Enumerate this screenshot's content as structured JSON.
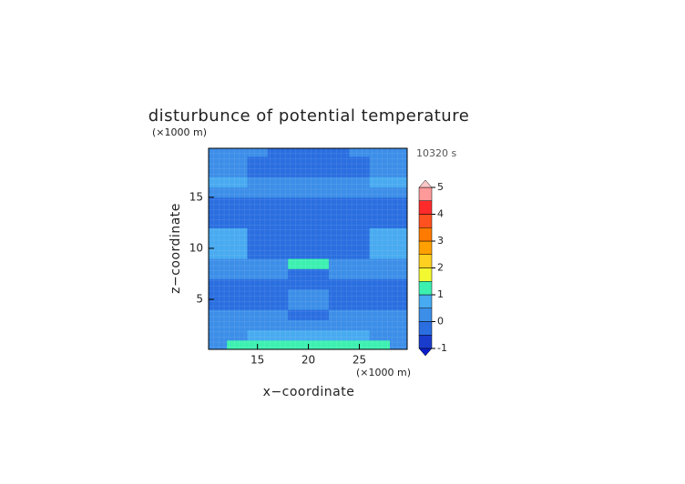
{
  "chart_data": {
    "type": "contour",
    "title": "disturbunce of potential temperature",
    "y_unit_label": "(×1000 m)",
    "x_unit_label": "(×1000 m)",
    "time_label": "10320 s",
    "xlabel": "x−coordinate",
    "ylabel": "z−coordinate",
    "xlim": [
      10.2,
      29.7
    ],
    "ylim": [
      0.1,
      19.8
    ],
    "xticks": [
      15,
      20,
      25
    ],
    "yticks": [
      5,
      10,
      15
    ],
    "x": [
      11,
      13,
      15,
      17,
      19,
      21,
      23,
      25,
      27,
      29
    ],
    "y": [
      0.5,
      1.5,
      2.5,
      3.5,
      4.5,
      5.5,
      6.5,
      7.5,
      8.5,
      9.5,
      10.5,
      11.5,
      12.5,
      13.5,
      14.5,
      15.5,
      16.5,
      17.5,
      18.5,
      19.5
    ],
    "z": [
      [
        0.3,
        1.2,
        1.2,
        1.2,
        1.2,
        1.2,
        1.2,
        1.2,
        1.2,
        0.3
      ],
      [
        0.3,
        0.3,
        0.6,
        0.6,
        0.6,
        0.6,
        0.6,
        0.6,
        0.3,
        0.3
      ],
      [
        0.3,
        0.3,
        0.3,
        0.3,
        0.3,
        0.3,
        0.3,
        0.3,
        0.3,
        0.3
      ],
      [
        0.3,
        0.3,
        0.3,
        0.3,
        -0.2,
        -0.2,
        0.3,
        0.3,
        0.3,
        0.3
      ],
      [
        -0.2,
        -0.2,
        -0.2,
        -0.2,
        0.3,
        0.3,
        -0.2,
        -0.2,
        -0.2,
        -0.2
      ],
      [
        -0.2,
        -0.2,
        -0.2,
        -0.2,
        0.3,
        0.3,
        -0.2,
        -0.2,
        -0.2,
        -0.2
      ],
      [
        -0.2,
        -0.2,
        -0.2,
        -0.2,
        -0.2,
        -0.2,
        -0.2,
        -0.2,
        -0.2,
        -0.2
      ],
      [
        0.3,
        0.3,
        0.3,
        0.3,
        -0.2,
        -0.2,
        0.3,
        0.3,
        0.3,
        0.3
      ],
      [
        0.3,
        0.3,
        0.3,
        0.3,
        1.2,
        1.2,
        0.3,
        0.3,
        0.3,
        0.3
      ],
      [
        0.6,
        0.6,
        -0.2,
        -0.2,
        -0.2,
        -0.2,
        -0.2,
        -0.2,
        0.6,
        0.6
      ],
      [
        0.6,
        0.6,
        -0.2,
        -0.2,
        -0.2,
        -0.2,
        -0.2,
        -0.2,
        0.6,
        0.6
      ],
      [
        0.6,
        0.6,
        -0.2,
        -0.2,
        -0.2,
        -0.2,
        -0.2,
        -0.2,
        0.6,
        0.6
      ],
      [
        -0.2,
        -0.2,
        -0.2,
        -0.2,
        -0.2,
        -0.2,
        -0.2,
        -0.2,
        -0.2,
        -0.2
      ],
      [
        -0.2,
        -0.2,
        -0.2,
        -0.2,
        -0.2,
        -0.2,
        -0.2,
        -0.2,
        -0.2,
        -0.2
      ],
      [
        -0.2,
        -0.2,
        -0.2,
        -0.2,
        -0.2,
        -0.2,
        -0.2,
        -0.2,
        -0.2,
        -0.2
      ],
      [
        0.3,
        0.3,
        0.3,
        0.3,
        0.3,
        0.3,
        0.3,
        0.3,
        0.3,
        0.3
      ],
      [
        0.6,
        0.6,
        0.3,
        0.3,
        0.3,
        0.3,
        0.3,
        0.3,
        0.6,
        0.6
      ],
      [
        0.3,
        0.3,
        -0.2,
        -0.2,
        -0.2,
        -0.2,
        -0.2,
        -0.2,
        0.3,
        0.3
      ],
      [
        0.3,
        0.3,
        -0.2,
        -0.2,
        -0.2,
        -0.2,
        -0.2,
        -0.2,
        0.3,
        0.3
      ],
      [
        0.3,
        0.3,
        0.3,
        -0.2,
        -0.2,
        -0.2,
        -0.2,
        0.3,
        0.3,
        0.3
      ]
    ],
    "levels": [
      -1,
      -0.5,
      0,
      0.5,
      1,
      1.5,
      2,
      2.5,
      3,
      3.5,
      4,
      4.5,
      5
    ],
    "colors": [
      "#1a3ccc",
      "#2a6ee0",
      "#3c8ee8",
      "#48aaf0",
      "#3cf0b0",
      "#f4f830",
      "#ffd020",
      "#ffa000",
      "#ff7a00",
      "#ff5020",
      "#ff2a2a",
      "#ff9a9a"
    ],
    "under_color": "#0a1ec8",
    "over_color": "#ffc8c8",
    "colorbar_ticks": [
      -1,
      0,
      1,
      2,
      3,
      4,
      5
    ]
  }
}
